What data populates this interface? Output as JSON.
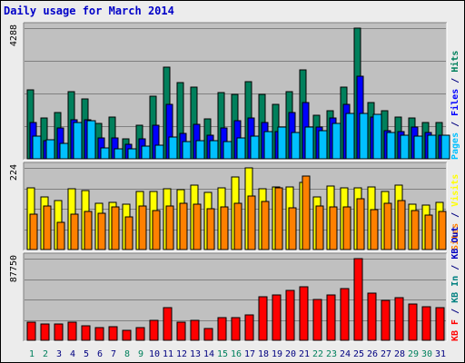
{
  "title": "Daily usage for March 2014",
  "colors": {
    "hits": "#00805c",
    "files": "#0000ff",
    "pages": "#00c0ff",
    "visits": "#ffff00",
    "sites": "#ff8000",
    "kbin": "#008080",
    "kbout": "#0000c0",
    "kbf": "#ff0000",
    "plot_bg": "#c0c0c0",
    "weekend_label": "#00805c",
    "weekday_label": "#000080"
  },
  "chart_data": [
    {
      "type": "bar",
      "title": "Hits / Files / Pages",
      "ymax_label": "4288",
      "ylim": [
        0,
        4288
      ],
      "legend": [
        {
          "text": "Pages",
          "color": "#00c0ff"
        },
        {
          "text": " / ",
          "color": "#000080"
        },
        {
          "text": "Files",
          "color": "#0000ff"
        },
        {
          "text": " / ",
          "color": "#000080"
        },
        {
          "text": "Hits",
          "color": "#00805c"
        }
      ],
      "categories": [
        "1",
        "2",
        "3",
        "4",
        "5",
        "6",
        "7",
        "8",
        "9",
        "10",
        "11",
        "12",
        "13",
        "14",
        "15",
        "16",
        "17",
        "18",
        "19",
        "20",
        "21",
        "22",
        "23",
        "24",
        "25",
        "26",
        "27",
        "28",
        "29",
        "30",
        "31"
      ],
      "series": [
        {
          "name": "Hits",
          "color": "#00805c",
          "values": [
            2260,
            1340,
            1520,
            2200,
            1970,
            1170,
            1380,
            650,
            1110,
            2040,
            3010,
            2500,
            2360,
            1310,
            2170,
            2100,
            2520,
            2100,
            1800,
            2190,
            2930,
            1430,
            1590,
            2360,
            4288,
            1840,
            1570,
            1370,
            1330,
            1190,
            1200
          ]
        },
        {
          "name": "Files",
          "color": "#0000ff",
          "values": [
            1200,
            600,
            1020,
            1270,
            1270,
            690,
            690,
            480,
            650,
            1110,
            1800,
            830,
            1140,
            760,
            1000,
            1260,
            1350,
            1200,
            900,
            1530,
            1840,
            1050,
            1330,
            1800,
            2700,
            1360,
            910,
            900,
            1050,
            850,
            770
          ]
        },
        {
          "name": "Pages",
          "color": "#00c0ff",
          "values": [
            740,
            620,
            520,
            1200,
            1240,
            360,
            340,
            320,
            430,
            460,
            700,
            580,
            600,
            600,
            560,
            690,
            730,
            900,
            1040,
            860,
            1050,
            920,
            1150,
            1490,
            1490,
            1470,
            860,
            760,
            740,
            780,
            780
          ]
        }
      ]
    },
    {
      "type": "bar",
      "title": "Visits / Sites",
      "ymax_label": "224",
      "ylim": [
        0,
        224
      ],
      "legend": [
        {
          "text": "Sites",
          "color": "#ff8000"
        },
        {
          "text": " / ",
          "color": "#000080"
        },
        {
          "text": "Visits",
          "color": "#ffff00"
        }
      ],
      "categories": [
        "1",
        "2",
        "3",
        "4",
        "5",
        "6",
        "7",
        "8",
        "9",
        "10",
        "11",
        "12",
        "13",
        "14",
        "15",
        "16",
        "17",
        "18",
        "19",
        "20",
        "21",
        "22",
        "23",
        "24",
        "25",
        "26",
        "27",
        "28",
        "29",
        "30",
        "31"
      ],
      "series": [
        {
          "name": "Visits",
          "color": "#ffff00",
          "values": [
            168,
            145,
            134,
            166,
            161,
            126,
            130,
            125,
            160,
            159,
            166,
            165,
            176,
            157,
            170,
            200,
            224,
            167,
            172,
            172,
            185,
            144,
            173,
            168,
            169,
            172,
            160,
            176,
            124,
            123,
            130
          ]
        },
        {
          "name": "Sites",
          "color": "#ff8000",
          "values": [
            96,
            120,
            74,
            96,
            104,
            100,
            118,
            90,
            120,
            106,
            120,
            128,
            124,
            112,
            117,
            126,
            148,
            133,
            168,
            114,
            201,
            120,
            118,
            118,
            140,
            110,
            126,
            135,
            106,
            94,
            104
          ]
        }
      ]
    },
    {
      "type": "bar",
      "title": "KBytes",
      "ymax_label": "87750",
      "ylim": [
        0,
        87750
      ],
      "legend": [
        {
          "text": "KB F",
          "color": "#ff0000"
        },
        {
          "text": " / ",
          "color": "#000080"
        },
        {
          "text": "KB In",
          "color": "#008080"
        },
        {
          "text": " / ",
          "color": "#000080"
        },
        {
          "text": "KB Out",
          "color": "#0000c0"
        }
      ],
      "categories": [
        "1",
        "2",
        "3",
        "4",
        "5",
        "6",
        "7",
        "8",
        "9",
        "10",
        "11",
        "12",
        "13",
        "14",
        "15",
        "16",
        "17",
        "18",
        "19",
        "20",
        "21",
        "22",
        "23",
        "24",
        "25",
        "26",
        "27",
        "28",
        "29",
        "30",
        "31"
      ],
      "series": [
        {
          "name": "KB F",
          "color": "#ff0000",
          "values": [
            19600,
            17200,
            17200,
            19600,
            15700,
            13300,
            14500,
            11000,
            13300,
            21900,
            35200,
            19600,
            21900,
            12500,
            24300,
            24300,
            27400,
            47000,
            48600,
            53300,
            57200,
            43900,
            48600,
            55600,
            87750,
            50900,
            43100,
            45500,
            39200,
            36100,
            35200
          ]
        }
      ]
    }
  ],
  "x_labels": [
    {
      "day": "1",
      "weekend": true
    },
    {
      "day": "2",
      "weekend": true
    },
    {
      "day": "3",
      "weekend": false
    },
    {
      "day": "4",
      "weekend": false
    },
    {
      "day": "5",
      "weekend": false
    },
    {
      "day": "6",
      "weekend": false
    },
    {
      "day": "7",
      "weekend": false
    },
    {
      "day": "8",
      "weekend": true
    },
    {
      "day": "9",
      "weekend": true
    },
    {
      "day": "10",
      "weekend": false
    },
    {
      "day": "11",
      "weekend": false
    },
    {
      "day": "12",
      "weekend": false
    },
    {
      "day": "13",
      "weekend": false
    },
    {
      "day": "14",
      "weekend": false
    },
    {
      "day": "15",
      "weekend": true
    },
    {
      "day": "16",
      "weekend": true
    },
    {
      "day": "17",
      "weekend": false
    },
    {
      "day": "18",
      "weekend": false
    },
    {
      "day": "19",
      "weekend": false
    },
    {
      "day": "20",
      "weekend": false
    },
    {
      "day": "21",
      "weekend": false
    },
    {
      "day": "22",
      "weekend": true
    },
    {
      "day": "23",
      "weekend": true
    },
    {
      "day": "24",
      "weekend": false
    },
    {
      "day": "25",
      "weekend": false
    },
    {
      "day": "26",
      "weekend": false
    },
    {
      "day": "27",
      "weekend": false
    },
    {
      "day": "28",
      "weekend": false
    },
    {
      "day": "29",
      "weekend": true
    },
    {
      "day": "30",
      "weekend": true
    },
    {
      "day": "31",
      "weekend": false
    }
  ]
}
